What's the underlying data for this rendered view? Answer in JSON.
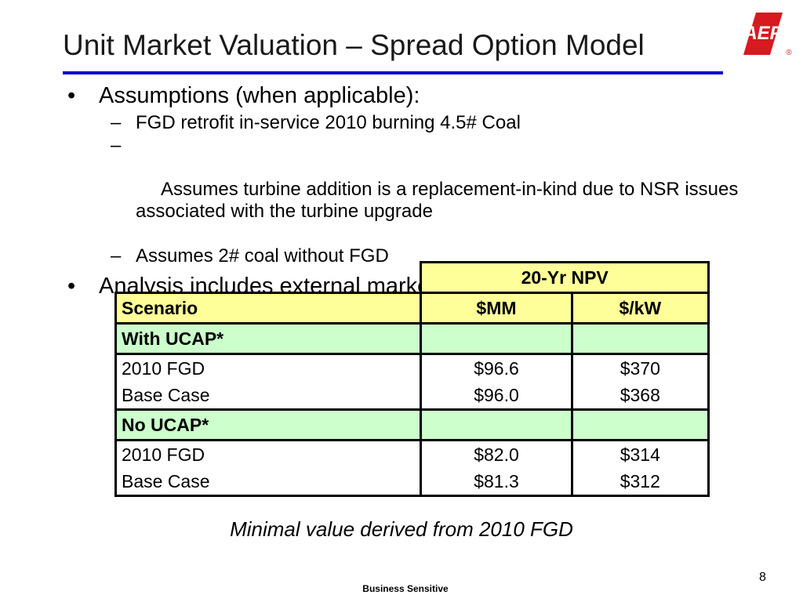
{
  "slide": {
    "title": "Unit Market Valuation – Spread Option Model",
    "logo_text": "AEP",
    "logo_mark": "®",
    "bullets": [
      {
        "text": "Assumptions (when applicable):",
        "sub": [
          "FGD retrofit in-service 2010 burning 4.5# Coal",
          " Assumes turbine addition is a replacement-in-kind due to NSR issues associated with the turbine upgrade",
          "Assumes 2# coal without FGD"
        ]
      },
      {
        "text": "Analysis includes external market value of allowances"
      }
    ],
    "bullet_glyph": "•",
    "dash_glyph": "–"
  },
  "table": {
    "group_header": "20-Yr NPV",
    "columns": [
      "Scenario",
      "$MM",
      "$/kW"
    ],
    "sections": [
      {
        "label": "With UCAP*",
        "rows": [
          {
            "scenario": "2010 FGD",
            "mm": "$96.6",
            "kw": "$370"
          },
          {
            "scenario": "Base Case",
            "mm": "$96.0",
            "kw": "$368"
          }
        ]
      },
      {
        "label": "No UCAP*",
        "rows": [
          {
            "scenario": "2010 FGD",
            "mm": "$82.0",
            "kw": "$314"
          },
          {
            "scenario": "Base Case",
            "mm": "$81.3",
            "kw": "$312"
          }
        ]
      }
    ]
  },
  "caption": "Minimal value derived from 2010 FGD",
  "page_number": "8",
  "footer": "Business Sensitive",
  "colors": {
    "title_rule": "#0000cc",
    "header_fill": "#ffff99",
    "section_fill": "#ccffcc",
    "logo_red": "#d71920"
  }
}
